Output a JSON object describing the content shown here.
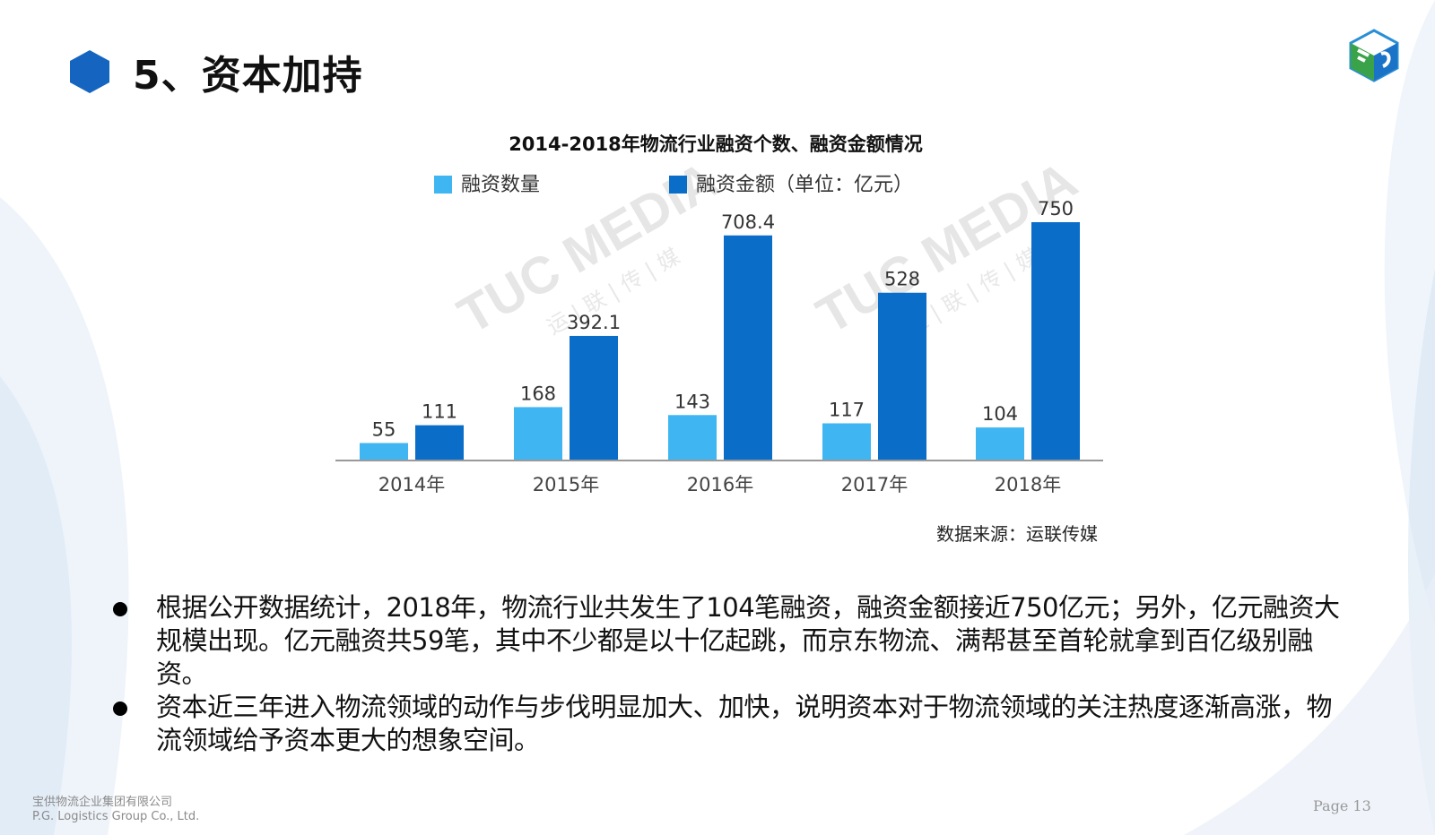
{
  "slide": {
    "title": "5、资本加持",
    "source_note": "数据来源：运联传媒",
    "bullets": [
      "根据公开数据统计，2018年，物流行业共发生了104笔融资，融资金额接近750亿元；另外，亿元融资大规模出现。亿元融资共59笔，其中不少都是以十亿起跳，而京东物流、满帮甚至首轮就拿到百亿级别融资。",
      "资本近三年进入物流领域的动作与步伐明显加大、加快，说明资本对于物流领域的关注热度逐渐高涨，物流领域给予资本更大的想象空间。"
    ],
    "footer_company_cn": "宝供物流企业集团有限公司",
    "footer_company_en": "P.G. Logistics Group Co., Ltd.",
    "page_label": "Page 13"
  },
  "watermark": {
    "text": "TUC MEDIA",
    "text_cn": "运 | 联 | 传 | 媒"
  },
  "colors": {
    "series1": "#3fb6f2",
    "series2": "#0a6ec9",
    "title_hex": "#1565c0"
  },
  "chart_data": {
    "type": "bar",
    "title": "2014-2018年物流行业融资个数、融资金额情况",
    "categories": [
      "2014年",
      "2015年",
      "2016年",
      "2017年",
      "2018年"
    ],
    "series": [
      {
        "name": "融资数量",
        "values": [
          55,
          168,
          143,
          117,
          104
        ],
        "labels": [
          "55",
          "168",
          "143",
          "117",
          "104"
        ]
      },
      {
        "name": "融资金额（单位：亿元）",
        "values": [
          111,
          392.1,
          708.4,
          528,
          750
        ],
        "labels": [
          "111",
          "392.1",
          "708.4",
          "528",
          "750"
        ]
      }
    ],
    "ylim": [
      0,
      750
    ],
    "grid": false,
    "legend": "top"
  }
}
